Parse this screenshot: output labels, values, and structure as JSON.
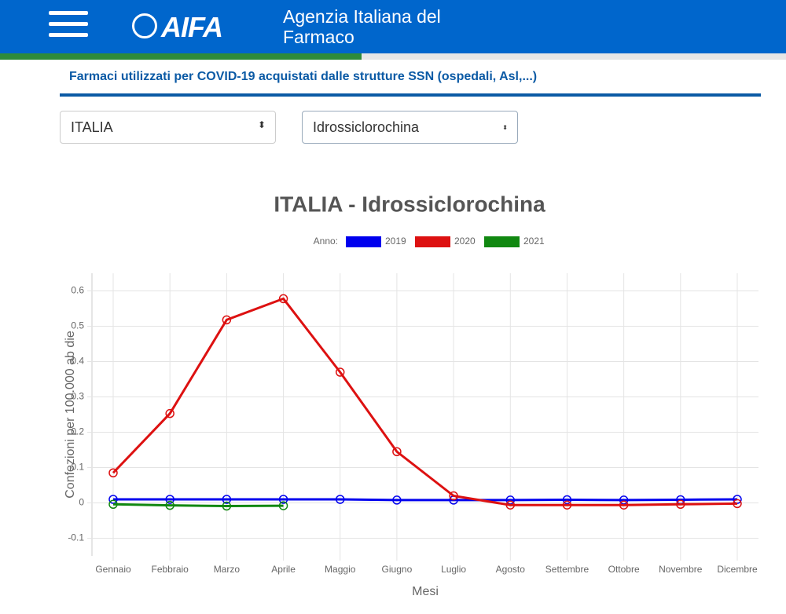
{
  "header": {
    "logo": "AIFA",
    "title_lines": [
      "Agenzia Italiana del",
      "Farmaco"
    ]
  },
  "subtitle": "Farmaci utilizzati per COVID-19 acquistati dalle strutture SSN (ospedali, Asl,...)",
  "selects": [
    "ITALIA",
    "Idrossiclorochina"
  ],
  "chart_data": {
    "type": "line",
    "title": "ITALIA - Idrossiclorochina",
    "legend_title": "Anno:",
    "x_label": "Mesi",
    "y_label": "Confezioni per 100.000 ab die",
    "categories": [
      "Gennaio",
      "Febbraio",
      "Marzo",
      "Aprile",
      "Maggio",
      "Giugno",
      "Luglio",
      "Agosto",
      "Settembre",
      "Ottobre",
      "Novembre",
      "Dicembre"
    ],
    "series": [
      {
        "name": "2019",
        "color": "#0000ee",
        "values": [
          0.01,
          0.01,
          0.01,
          0.01,
          0.01,
          0.008,
          0.008,
          0.008,
          0.009,
          0.008,
          0.009,
          0.01
        ]
      },
      {
        "name": "2020",
        "color": "#dd1111",
        "values": [
          0.085,
          0.253,
          0.518,
          0.578,
          0.37,
          0.145,
          0.02,
          -0.006,
          -0.006,
          -0.006,
          -0.004,
          -0.002
        ]
      },
      {
        "name": "2021",
        "color": "#118811",
        "values": [
          -0.004,
          -0.007,
          -0.009,
          -0.008,
          null,
          null,
          null,
          null,
          null,
          null,
          null,
          null
        ]
      }
    ],
    "ylim": [
      -0.15,
      0.65
    ],
    "yticks": [
      -0.1,
      0,
      0.1,
      0.2,
      0.3,
      0.4,
      0.5,
      0.6
    ],
    "grid": true
  }
}
